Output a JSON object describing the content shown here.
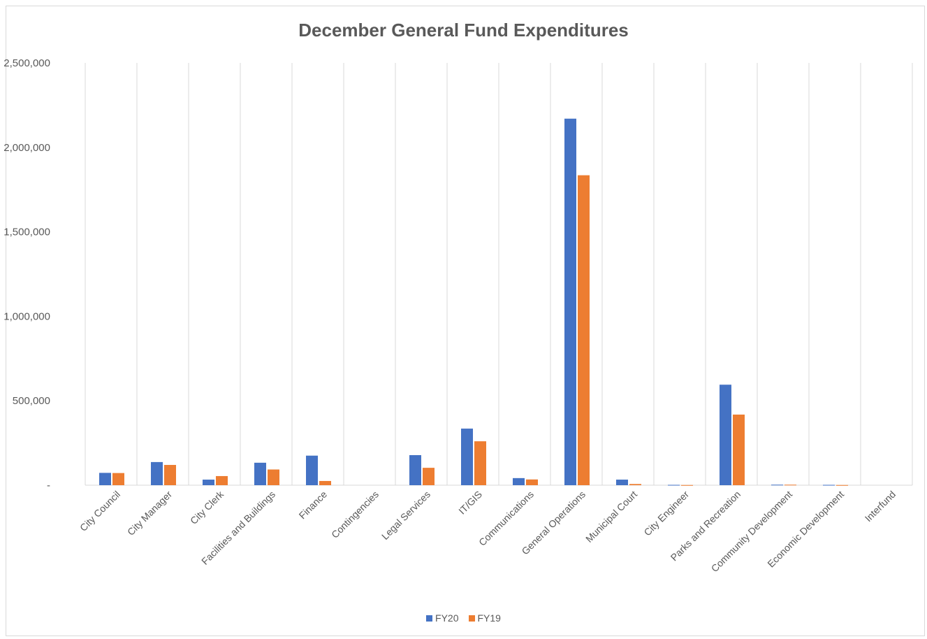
{
  "chart_data": {
    "type": "bar",
    "title": "December General Fund Expenditures",
    "xlabel": "",
    "ylabel": "",
    "ylim": [
      0,
      2500000
    ],
    "yticks": [
      0,
      500000,
      1000000,
      1500000,
      2000000,
      2500000
    ],
    "ytick_labels": [
      "-",
      "500,000",
      "1,000,000",
      "1,500,000",
      "2,000,000",
      "2,500,000"
    ],
    "grid": "vertical",
    "legend_position": "bottom",
    "categories": [
      "City Council",
      "City Manager",
      "City Clerk",
      "Facilities and Buildings",
      "Finance",
      "Contingencies",
      "Legal Services",
      "IT/GIS",
      "Communications",
      "General Operations",
      "Municipal Court",
      "City Engineer",
      "Parks and Recreation",
      "Community Development",
      "Economic Development",
      "Interfund"
    ],
    "series": [
      {
        "name": "FY20",
        "color": "#4472c4",
        "values": [
          73000,
          137000,
          33000,
          133000,
          175000,
          0,
          178000,
          335000,
          42000,
          2170000,
          33000,
          2000,
          595000,
          3000,
          2000,
          0
        ]
      },
      {
        "name": "FY19",
        "color": "#ed7d31",
        "values": [
          72000,
          120000,
          54000,
          93000,
          25000,
          0,
          103000,
          260000,
          34000,
          1835000,
          7000,
          1000,
          418000,
          3000,
          1000,
          0
        ]
      }
    ]
  }
}
